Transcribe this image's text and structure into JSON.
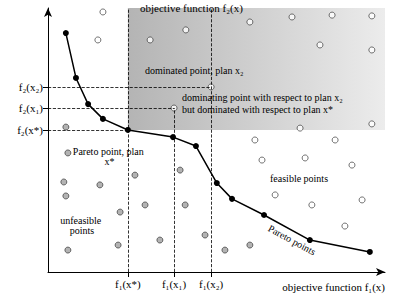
{
  "chart_data": {
    "type": "scatter",
    "xlabel": "objective function f₁(x)",
    "ylabel": "objective function f₂(x)",
    "xlim": [
      0,
      100
    ],
    "ylim": [
      0,
      100
    ],
    "xticks": [
      {
        "value": 23.7,
        "label": "f₁(x*)"
      },
      {
        "value": 37.4,
        "label": "f₁(x₁)"
      },
      {
        "value": 48.4,
        "label": "f₁(x₂)"
      }
    ],
    "yticks": [
      {
        "value": 53.8,
        "label": "f₂(x*)"
      },
      {
        "value": 62.1,
        "label": "f₂(x₁)"
      },
      {
        "value": 70.1,
        "label": "f₂(x₂)"
      }
    ],
    "grid": false,
    "series": [
      {
        "name": "Pareto points",
        "type": "line",
        "color": "#000000",
        "marker": "circle",
        "x": [
          5.3,
          8.3,
          11.9,
          16.3,
          23.7,
          37.1,
          43.9,
          50.1,
          54.6,
          64.1,
          77.7,
          95.5
        ],
        "values": [
          90.5,
          73.5,
          63.6,
          58.0,
          53.8,
          51.1,
          47.7,
          33.7,
          27.7,
          21.6,
          12.1,
          7.6
        ]
      },
      {
        "name": "feasible points",
        "type": "scatter",
        "color": "#ffffff",
        "marker": "circle",
        "x": [
          16.3,
          14.8,
          30.3,
          40.9,
          59.9,
          72.4,
          84.3,
          96.1,
          80.7,
          96.1,
          96.1,
          74.8,
          85.2,
          61.4,
          63.5,
          76.3,
          90.2,
          93.2,
          78.3,
          67.4,
          88.1,
          37.4,
          48.4
        ],
        "values": [
          98.5,
          87.9,
          87.9,
          91.7,
          94.7,
          96.6,
          97.3,
          97.0,
          86.0,
          84.1,
          56.1,
          54.5,
          50.0,
          50.0,
          42.4,
          43.2,
          40.5,
          27.3,
          25.4,
          29.2,
          17.4,
          62.1,
          70.1
        ]
      },
      {
        "name": "unfeasible points",
        "type": "scatter",
        "color": "#a0a0a0",
        "marker": "circle",
        "x": [
          5.3,
          5.9,
          4.7,
          5.3,
          5.9,
          15.4,
          21.4,
          20.8,
          25.8,
          28.8,
          33.2,
          39.2,
          40.7,
          46.6,
          52.5,
          59.9
        ],
        "values": [
          54.9,
          45.1,
          34.1,
          28.8,
          8.3,
          33.0,
          22.7,
          10.2,
          36.7,
          25.4,
          12.1,
          38.6,
          25.4,
          14.0,
          8.3,
          10.2
        ]
      }
    ],
    "annotations": [
      "dominated point, plan x₂",
      "dominating point with respect to plan x₂",
      "but dominated with respect to plan x*",
      "Pareto point, plan x*"
    ]
  }
}
